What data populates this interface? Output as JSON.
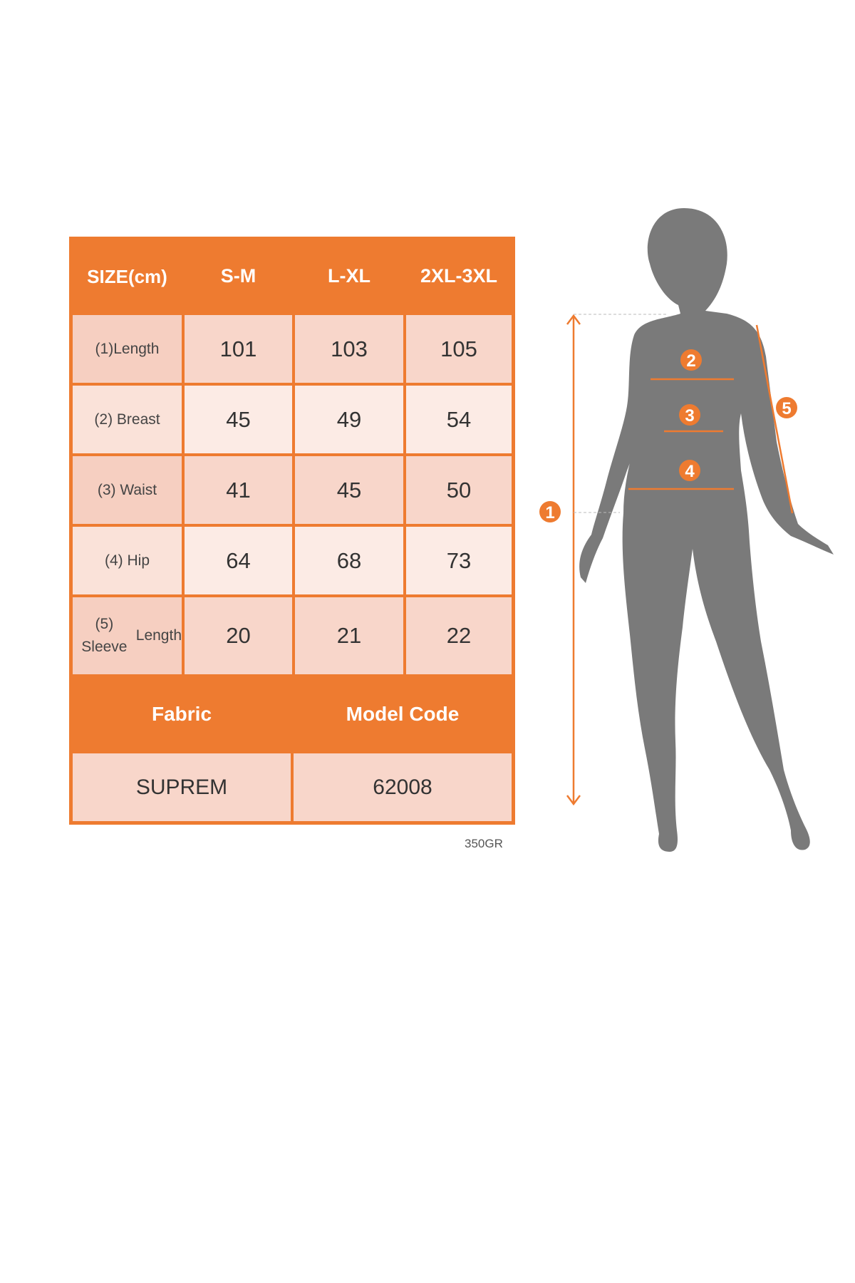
{
  "size_chart": {
    "header": [
      "SIZE (cm)",
      "S-M",
      "L-XL",
      "2XL-3XL"
    ],
    "header_first_lines": [
      "SIZE",
      "(cm)"
    ],
    "rows": [
      {
        "label": "(1)Length",
        "values": [
          "101",
          "103",
          "105"
        ]
      },
      {
        "label": "(2) Breast",
        "values": [
          "45",
          "49",
          "54"
        ]
      },
      {
        "label": "(3) Waist",
        "values": [
          "41",
          "45",
          "50"
        ]
      },
      {
        "label": "(4) Hip",
        "values": [
          "64",
          "68",
          "73"
        ]
      },
      {
        "label_lines": [
          "(5) Sleeve",
          "Length"
        ],
        "values": [
          "20",
          "21",
          "22"
        ]
      }
    ],
    "footer_headers": [
      "Fabric",
      "Model Code"
    ],
    "footer_values": [
      "SUPREM",
      "62008"
    ],
    "weight_note": "350GR"
  },
  "figure": {
    "markers": [
      "1",
      "2",
      "3",
      "4",
      "5"
    ],
    "silhouette_color": "#7a7a7a"
  },
  "colors": {
    "accent": "#ee7b30",
    "row_dark": "#f8d6ca",
    "row_light": "#fcebe5"
  }
}
